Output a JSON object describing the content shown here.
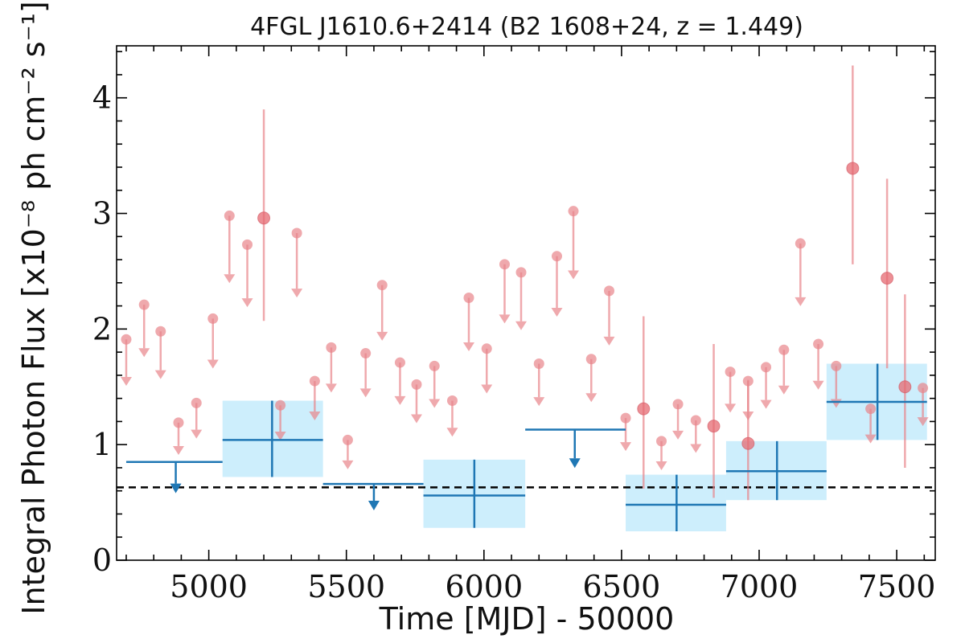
{
  "chart_data": {
    "type": "scatter",
    "title": "4FGL J1610.6+2414 (B2 1608+24, z = 1.449)",
    "xlabel": "Time [MJD] - 50000",
    "ylabel": "Integral Photon Flux [x10⁻⁸ ph cm⁻² s⁻¹]",
    "xlim": [
      4665,
      7640
    ],
    "ylim": [
      0,
      4.45
    ],
    "x_ticks": [
      "5000",
      "5500",
      "6000",
      "6500",
      "7000",
      "7500"
    ],
    "y_ticks": [
      "0",
      "1",
      "2",
      "3",
      "4"
    ],
    "reference_level": 0.63,
    "colors": {
      "short_bins": "#e8858a",
      "long_bins": "#1f77b4",
      "error_box": "#cdeefc",
      "reference_line": "#000000"
    },
    "short_bins_upper_limits": [
      {
        "x": 4700,
        "y": 1.91
      },
      {
        "x": 4765,
        "y": 2.21
      },
      {
        "x": 4825,
        "y": 1.98
      },
      {
        "x": 4890,
        "y": 1.19
      },
      {
        "x": 4955,
        "y": 1.36
      },
      {
        "x": 5015,
        "y": 2.09
      },
      {
        "x": 5075,
        "y": 2.98
      },
      {
        "x": 5140,
        "y": 2.73
      },
      {
        "x": 5260,
        "y": 1.34
      },
      {
        "x": 5320,
        "y": 2.83
      },
      {
        "x": 5385,
        "y": 1.55
      },
      {
        "x": 5445,
        "y": 1.84
      },
      {
        "x": 5505,
        "y": 1.04
      },
      {
        "x": 5570,
        "y": 1.79
      },
      {
        "x": 5630,
        "y": 2.38
      },
      {
        "x": 5695,
        "y": 1.71
      },
      {
        "x": 5755,
        "y": 1.52
      },
      {
        "x": 5820,
        "y": 1.68
      },
      {
        "x": 5885,
        "y": 1.38
      },
      {
        "x": 5945,
        "y": 2.27
      },
      {
        "x": 6010,
        "y": 1.83
      },
      {
        "x": 6075,
        "y": 2.56
      },
      {
        "x": 6135,
        "y": 2.49
      },
      {
        "x": 6200,
        "y": 1.7
      },
      {
        "x": 6265,
        "y": 2.63
      },
      {
        "x": 6325,
        "y": 3.02
      },
      {
        "x": 6390,
        "y": 1.74
      },
      {
        "x": 6455,
        "y": 2.33
      },
      {
        "x": 6515,
        "y": 1.23
      },
      {
        "x": 6645,
        "y": 1.03
      },
      {
        "x": 6705,
        "y": 1.35
      },
      {
        "x": 6770,
        "y": 1.21
      },
      {
        "x": 6895,
        "y": 1.63
      },
      {
        "x": 6960,
        "y": 1.55
      },
      {
        "x": 7025,
        "y": 1.67
      },
      {
        "x": 7090,
        "y": 1.82
      },
      {
        "x": 7150,
        "y": 2.74
      },
      {
        "x": 7215,
        "y": 1.87
      },
      {
        "x": 7280,
        "y": 1.68
      },
      {
        "x": 7405,
        "y": 1.31
      },
      {
        "x": 7595,
        "y": 1.49
      }
    ],
    "short_bins_detections": [
      {
        "x": 5200,
        "y": 2.96,
        "lo": 2.07,
        "hi": 3.9
      },
      {
        "x": 6580,
        "y": 1.31,
        "lo": 0.62,
        "hi": 2.11
      },
      {
        "x": 6835,
        "y": 1.16,
        "lo": 0.54,
        "hi": 1.87
      },
      {
        "x": 6960,
        "y": 1.01,
        "lo": 0.52,
        "hi": 1.56
      },
      {
        "x": 7340,
        "y": 3.39,
        "lo": 2.56,
        "hi": 4.28
      },
      {
        "x": 7465,
        "y": 2.44,
        "lo": 1.66,
        "hi": 3.3
      },
      {
        "x": 7530,
        "y": 1.5,
        "lo": 0.8,
        "hi": 2.3
      }
    ],
    "long_bins_upper_limits": [
      {
        "x0": 4700,
        "x1": 5050,
        "y": 0.85,
        "xmid": 4880
      },
      {
        "x0": 5415,
        "x1": 5780,
        "y": 0.66,
        "xmid": 5600
      },
      {
        "x0": 6150,
        "x1": 6515,
        "y": 1.13,
        "xmid": 6330
      }
    ],
    "long_bins_detections": [
      {
        "x0": 5050,
        "x1": 5415,
        "xc": 5230,
        "y": 1.04,
        "lo": 0.72,
        "hi": 1.38
      },
      {
        "x0": 5780,
        "x1": 6150,
        "xc": 5965,
        "y": 0.56,
        "lo": 0.28,
        "hi": 0.87
      },
      {
        "x0": 6515,
        "x1": 6880,
        "xc": 6700,
        "y": 0.48,
        "lo": 0.25,
        "hi": 0.74
      },
      {
        "x0": 6880,
        "x1": 7245,
        "xc": 7065,
        "y": 0.77,
        "lo": 0.52,
        "hi": 1.03
      },
      {
        "x0": 7245,
        "x1": 7610,
        "xc": 7430,
        "y": 1.37,
        "lo": 1.04,
        "hi": 1.7
      }
    ]
  }
}
